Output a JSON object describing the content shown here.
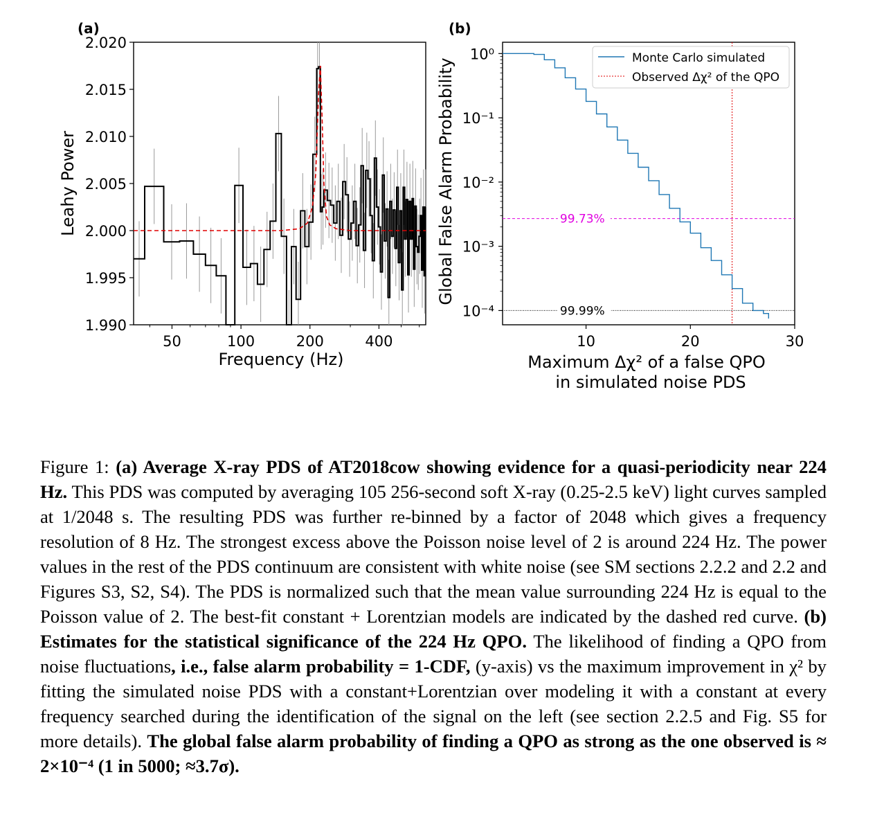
{
  "figure": {
    "panel_a": {
      "label": "(a)",
      "xlabel": "Frequency (Hz)",
      "ylabel": "Leahy Power",
      "yticks": [
        "2.020",
        "2.015",
        "2.010",
        "2.005",
        "2.000",
        "1.995",
        "1.990"
      ],
      "xticks": [
        "50",
        "100",
        "200",
        "400"
      ]
    },
    "panel_b": {
      "label": "(b)",
      "xlabel_line1": "Maximum Δχ² of a false QPO",
      "xlabel_line2": "in simulated noise PDS",
      "ylabel": "Global False Alarm Probability",
      "yticks": [
        "10⁰",
        "10⁻¹",
        "10⁻²",
        "10⁻³",
        "10⁻⁴"
      ],
      "xticks": [
        "10",
        "20",
        "30"
      ],
      "legend": {
        "mc": "Monte Carlo simulated",
        "obs": "Observed Δχ² of the QPO"
      },
      "ann_3sigma": "99.73%",
      "ann_4sigma": "99.99%"
    }
  },
  "chart_data": [
    {
      "type": "line",
      "xlabel": "Frequency (Hz)",
      "ylabel": "Leahy Power",
      "xscale": "log",
      "xlim": [
        34,
        640
      ],
      "ylim": [
        1.99,
        2.02
      ],
      "series": [
        {
          "x": [
            34,
            38,
            46,
            54,
            62,
            70,
            78,
            86,
            94,
            102,
            110,
            118,
            126,
            134,
            142,
            150,
            158,
            166,
            174,
            182,
            190,
            198,
            206,
            214,
            218,
            222,
            226,
            230,
            238,
            246,
            254,
            262,
            270,
            278,
            286,
            294,
            302,
            310,
            318,
            326,
            334,
            342,
            350,
            358,
            366,
            374,
            382,
            390,
            398,
            406,
            414,
            422,
            430,
            438,
            446,
            454,
            462,
            470,
            478,
            486,
            494,
            502,
            510,
            518,
            526,
            534,
            542,
            550,
            558,
            566,
            574,
            582,
            590,
            598,
            606,
            614,
            622,
            630,
            638
          ],
          "values": [
            1.997,
            2.0047,
            1.9988,
            1.9989,
            1.9975,
            1.9963,
            1.9952,
            1.9858,
            2.0048,
            1.9961,
            1.9965,
            1.9943,
            1.998,
            2.001,
            2.0103,
            1.9994,
            1.9897,
            1.9983,
            1.9927,
            2.0021,
            1.9983,
            2.0009,
            2.0081,
            2.0172,
            2.0174,
            2.002,
            2.0025,
            2.0043,
            2.0032,
            2.0027,
            2.0008,
            2.0031,
            1.9995,
            2.0052,
            2.0038,
            1.9991,
            2.0008,
            2.0031,
            1.9984,
            2.0006,
            2.0069,
            1.9979,
            2.0064,
            2.0055,
            2.0016,
            1.9968,
            2.0077,
            2.0025,
            2.0004,
            1.9956,
            2.0059,
            1.9989,
            2.0023,
            1.9929,
            2.0031,
            1.9994,
            2.0022,
            1.9981,
            2.0046,
            1.9966,
            2.0021,
            1.9937,
            2.0046,
            1.9991,
            2.0033,
            1.9953,
            2.0031,
            1.9991,
            2.0034,
            1.9959,
            2.0026,
            1.9983,
            1.9977,
            1.9994,
            2.0016,
            1.9958,
            2.0025,
            1.9952,
            2.0025
          ]
        },
        {
          "x": [
            34,
            150,
            180,
            195,
            205,
            212,
            218,
            222,
            226,
            230,
            236,
            244,
            260,
            300,
            400,
            640
          ],
          "values": [
            2.0,
            2.0,
            2.0002,
            2.0008,
            2.0025,
            2.006,
            2.0145,
            2.0175,
            2.012,
            2.005,
            2.0015,
            2.0006,
            2.0002,
            2.0,
            2.0,
            2.0
          ]
        }
      ]
    },
    {
      "type": "line",
      "xlabel": "Maximum Δχ² of a false QPO in simulated noise PDS",
      "ylabel": "Global False Alarm Probability",
      "yscale": "log",
      "xlim": [
        2,
        30
      ],
      "ylim": [
        6e-05,
        1.5
      ],
      "series": [
        {
          "name": "Monte Carlo simulated",
          "x": [
            2,
            4,
            5,
            6,
            7,
            8,
            9,
            10,
            11,
            12,
            13,
            14,
            15,
            16,
            17,
            18,
            19,
            20,
            21,
            22,
            23,
            24,
            25,
            26,
            27,
            27.5
          ],
          "values": [
            1.0,
            1.0,
            0.97,
            0.8,
            0.6,
            0.42,
            0.28,
            0.18,
            0.115,
            0.072,
            0.045,
            0.028,
            0.017,
            0.0105,
            0.0064,
            0.0039,
            0.0024,
            0.0016,
            0.00095,
            0.0006,
            0.00036,
            0.00022,
            0.00013,
            0.0001,
            9e-05,
            7.5e-05
          ]
        },
        {
          "name": "Observed Δχ² of the QPO",
          "x": [
            24,
            24
          ],
          "values": [
            6e-05,
            1.5
          ]
        }
      ],
      "reference_lines": [
        {
          "y": 0.0027,
          "label": "99.73%"
        },
        {
          "y": 0.0001,
          "label": "99.99%"
        }
      ]
    }
  ],
  "caption": {
    "fig_label": "Figure 1:",
    "a_bold": "(a) Average X-ray PDS of AT2018cow showing evidence for a quasi-periodicity near 224 Hz.",
    "a_text": "This PDS was computed by averaging 105 256-second soft X-ray (0.25-2.5 keV) light curves sampled at 1/2048 s. The resulting PDS was further re-binned by a factor of 2048 which gives a frequency resolution of 8 Hz. The strongest excess above the Poisson noise level of 2 is around 224 Hz. The power values in the rest of the PDS continuum are consistent with white noise (see SM sections 2.2.2 and 2.2 and Figures S3, S2, S4). The PDS is normalized such that the mean value surrounding 224 Hz is equal to the Poisson value of 2. The best-fit constant + Lorentzian models are indicated by the dashed red curve.",
    "b_bold": "(b) Estimates for the statistical significance of the 224 Hz QPO.",
    "b_text1": "The likelihood of finding a QPO from noise fluctuations",
    "b_comma": ",",
    "b_bold2": "i.e., false alarm probability = 1-CDF,",
    "b_text2": "(y-axis) vs the maximum improvement in χ² by fitting the simulated noise PDS with a constant+Lorentzian over modeling it with a constant at every frequency searched during the identification of the signal on the left (see section 2.2.5 and Fig. S5 for more details).",
    "b_bold3": "The global false alarm probability of finding a QPO as strong as the one observed is ≈ 2×10⁻⁴ (1 in 5000; ≈3.7σ).",
    "b_end": ""
  }
}
